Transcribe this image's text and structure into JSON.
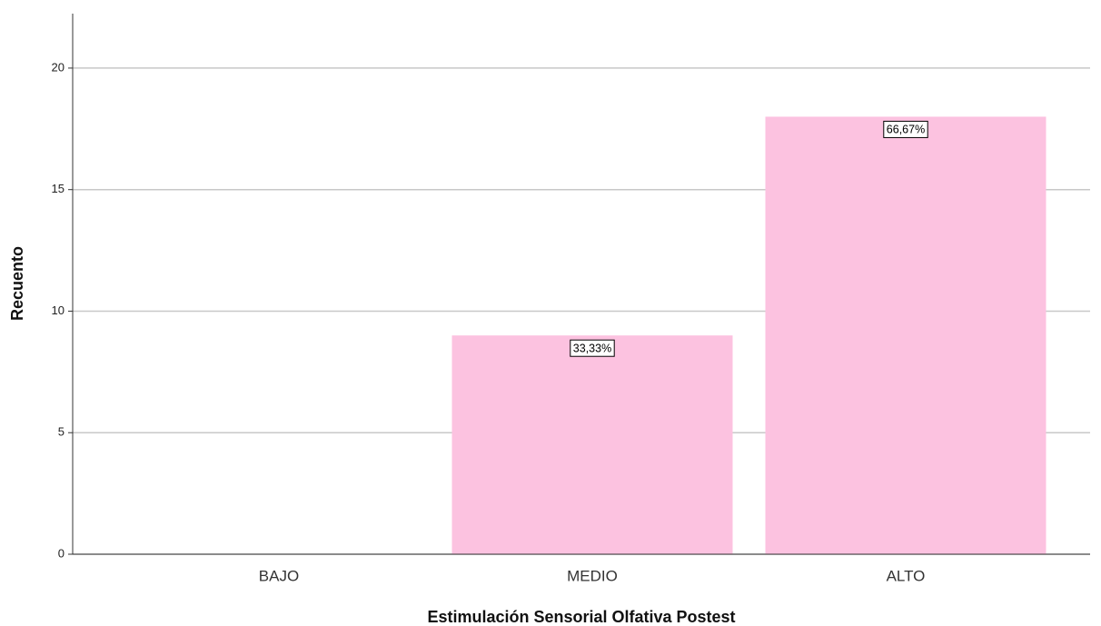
{
  "chart_data": {
    "type": "bar",
    "x_label": "Estimulación Sensorial Olfativa Postest",
    "y_label": "Recuento",
    "categories": [
      "BAJO",
      "MEDIO",
      "ALTO"
    ],
    "values": [
      0,
      9,
      18
    ],
    "percent_labels": [
      null,
      "33,33%",
      "66,67%"
    ],
    "color": "#fcc2e0",
    "ylim": [
      0,
      22.24
    ],
    "yticks": [
      0,
      5,
      10,
      15,
      20
    ],
    "grid": true
  }
}
